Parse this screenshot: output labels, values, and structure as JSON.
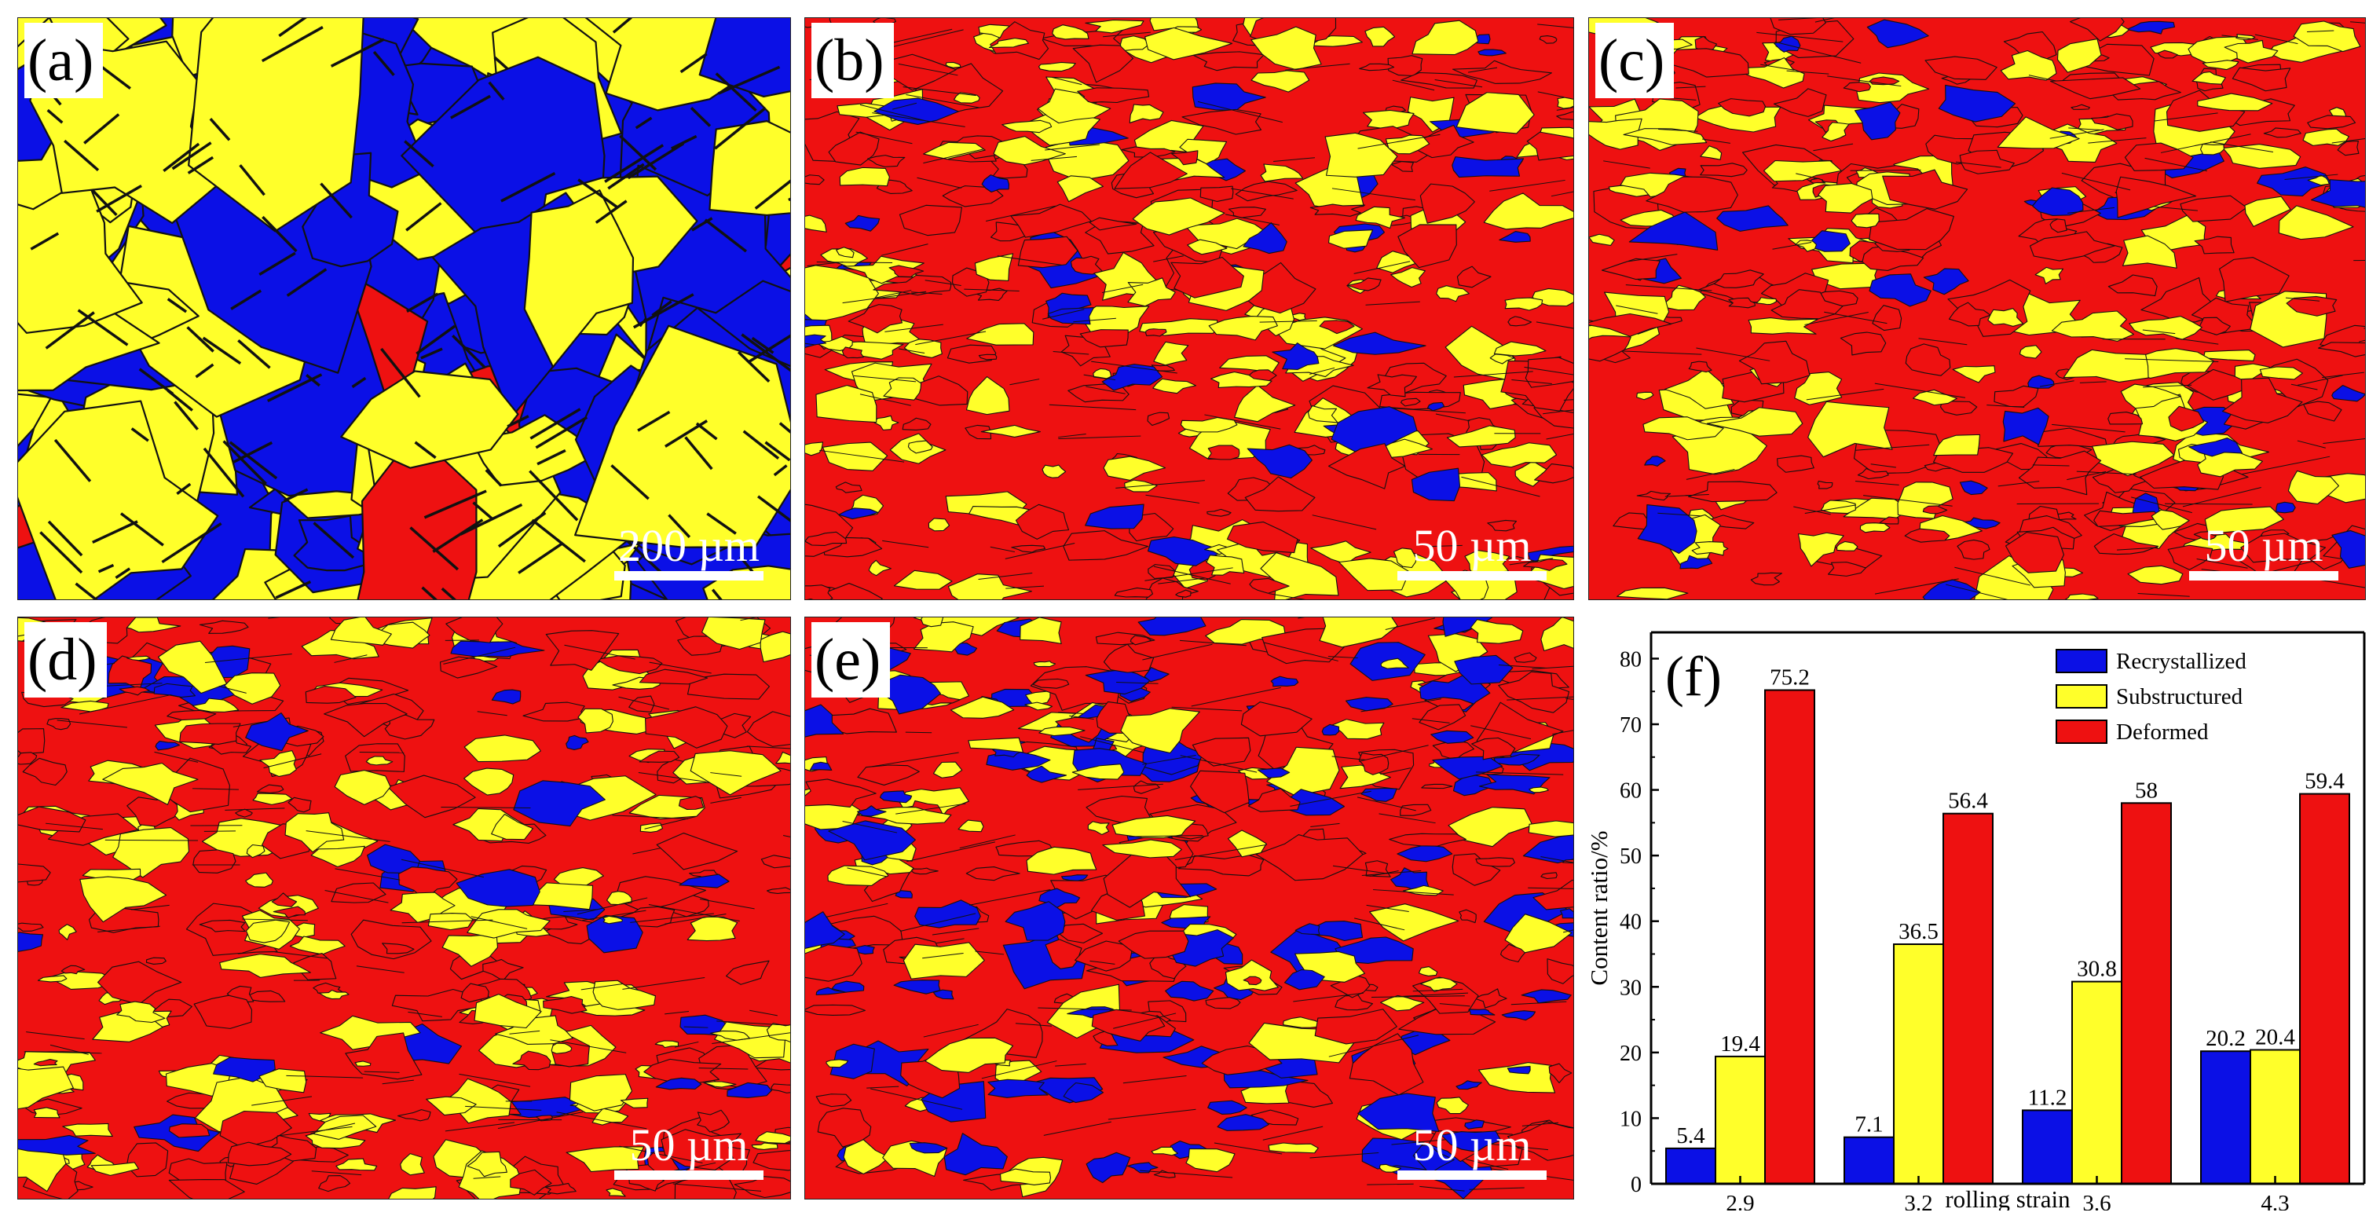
{
  "panels": [
    {
      "label": "(a)",
      "scale": "200 µm",
      "palette": "bluey"
    },
    {
      "label": "(b)",
      "scale": "50 µm",
      "palette": "red"
    },
    {
      "label": "(c)",
      "scale": "50 µm",
      "palette": "red"
    },
    {
      "label": "(d)",
      "scale": "50 µm",
      "palette": "red"
    },
    {
      "label": "(e)",
      "scale": "50 µm",
      "palette": "redblue"
    }
  ],
  "colors": {
    "recrystallized": "#0b10e6",
    "substructured": "#ffff2a",
    "deformed": "#ee1111",
    "grain_boundary": "#111111"
  },
  "chart_data": {
    "type": "bar",
    "panel_label": "(f)",
    "categories": [
      "2.9",
      "3.2",
      "3.6",
      "4.3"
    ],
    "series": [
      {
        "name": "Recrystallized",
        "color": "#0b10e6",
        "values": [
          5.4,
          7.1,
          11.2,
          20.2
        ],
        "labels": [
          "5.4",
          "7.1",
          "11.2",
          "20.2"
        ]
      },
      {
        "name": "Substructured",
        "color": "#ffff2a",
        "values": [
          19.4,
          36.5,
          30.8,
          20.4
        ],
        "labels": [
          "19.4",
          "36.5",
          "30.8",
          "20.4"
        ]
      },
      {
        "name": "Deformed",
        "color": "#ee1111",
        "values": [
          75.2,
          56.4,
          58,
          59.4
        ],
        "labels": [
          "75.2",
          "56.4",
          "58",
          "59.4"
        ]
      }
    ],
    "xlabel": "rolling strain",
    "ylabel": "Content ratio/%",
    "ylim": [
      0,
      84
    ],
    "yticks": [
      0,
      10,
      20,
      30,
      40,
      50,
      60,
      70,
      80
    ],
    "legend_position": "top-right"
  }
}
